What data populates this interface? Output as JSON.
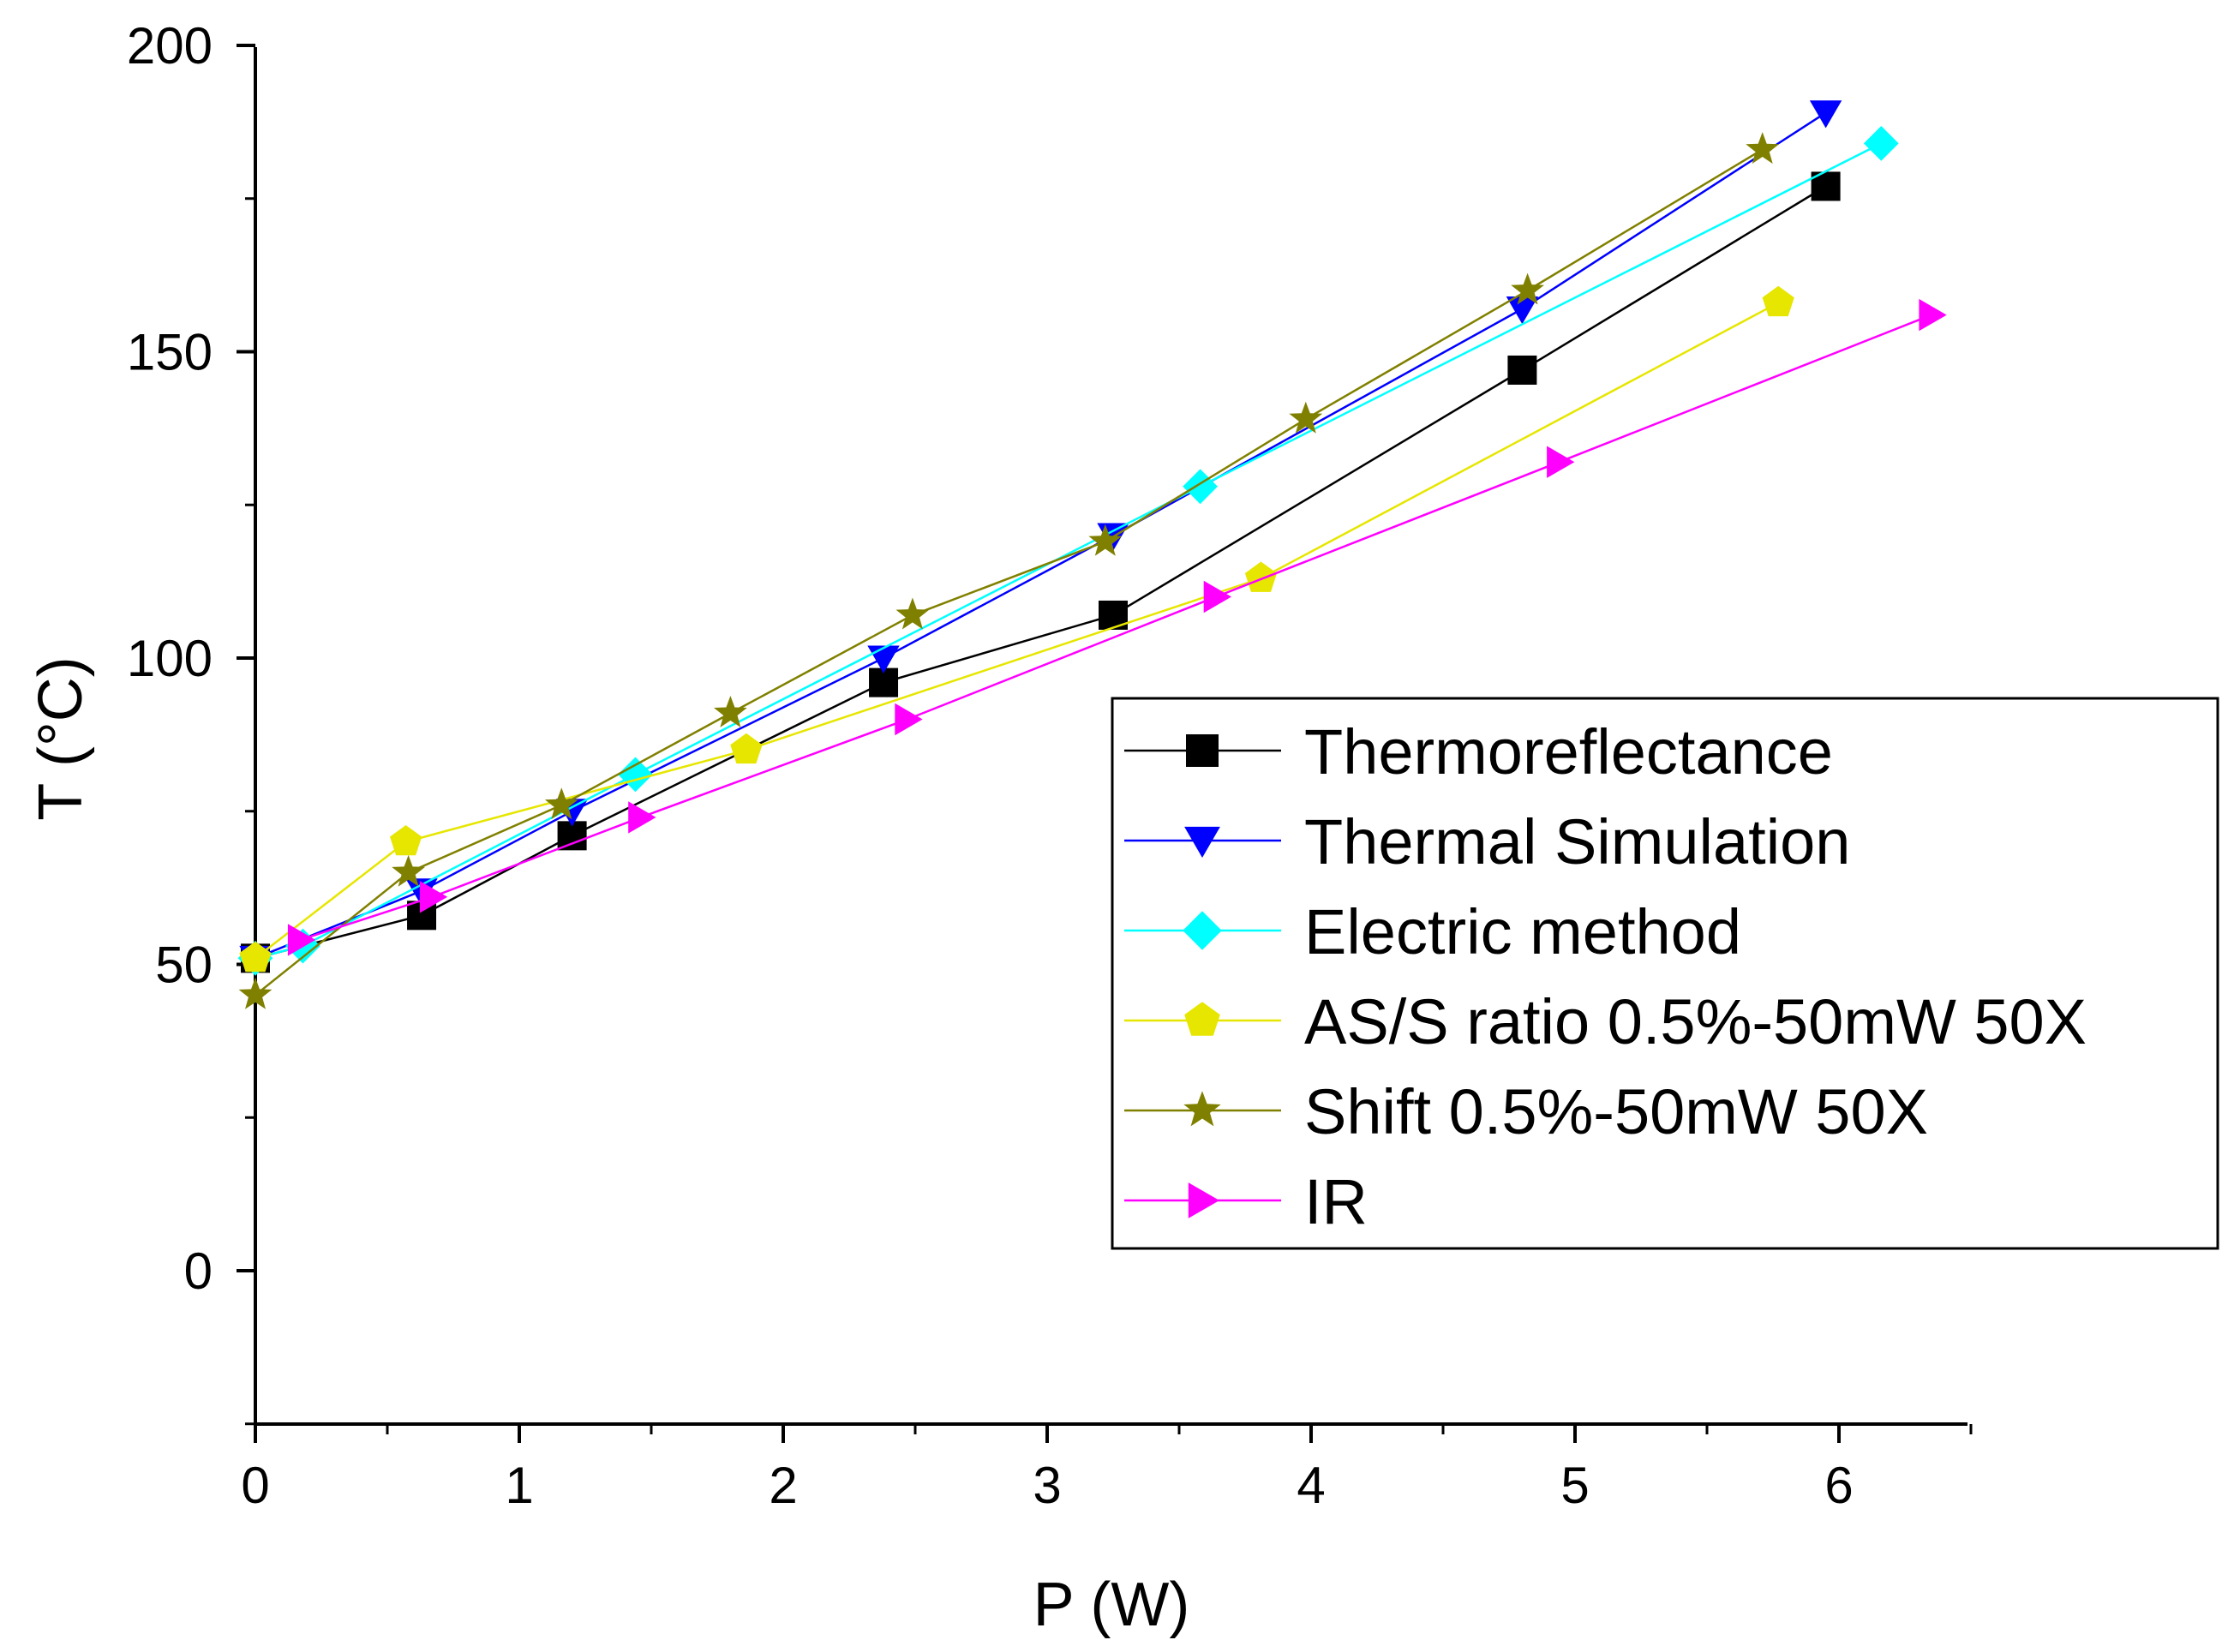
{
  "chart_data": {
    "type": "scatter",
    "title": "",
    "xlabel": "P (W)",
    "ylabel": "T (°C)",
    "xlim": [
      0,
      6.5
    ],
    "ylim": [
      -25,
      200
    ],
    "x_ticks": [
      0,
      1,
      2,
      3,
      4,
      5,
      6
    ],
    "x_tick_labels": [
      "0",
      "1",
      "2",
      "3",
      "4",
      "5",
      "6"
    ],
    "y_ticks": [
      0,
      50,
      100,
      150,
      200
    ],
    "y_tick_labels": [
      "0",
      "50",
      "100",
      "150",
      "200"
    ],
    "grid": false,
    "legend_position": "right",
    "series": [
      {
        "name": "Thermoreflectance",
        "color": "#000000",
        "marker": "square",
        "x": [
          0.0,
          0.63,
          1.2,
          2.38,
          3.25,
          4.8,
          5.95
        ],
        "y": [
          51,
          58,
          71,
          96,
          107,
          147,
          177
        ]
      },
      {
        "name": "Thermal Simulation",
        "color": "#0000ff",
        "marker": "triangle-down",
        "x": [
          0.0,
          0.63,
          1.2,
          2.38,
          3.25,
          4.8,
          5.95
        ],
        "y": [
          51,
          62,
          75,
          100,
          120,
          157,
          189
        ]
      },
      {
        "name": "Electric method",
        "color": "#00ffff",
        "marker": "diamond",
        "x": [
          0.0,
          0.18,
          1.44,
          3.58,
          6.16
        ],
        "y": [
          51,
          53,
          81,
          128,
          184
        ]
      },
      {
        "name": "AS/S ratio 0.5%-50mW 50X",
        "color": "#e6e600",
        "marker": "pentagon",
        "x": [
          0.0,
          0.57,
          1.86,
          3.81,
          5.77
        ],
        "y": [
          51,
          70,
          85,
          113,
          158
        ]
      },
      {
        "name": "Shift 0.5%-50mW 50X",
        "color": "#808000",
        "marker": "star",
        "x": [
          0.0,
          0.58,
          1.16,
          1.8,
          2.49,
          3.22,
          3.98,
          4.82,
          5.71
        ],
        "y": [
          45,
          65,
          76,
          91,
          107,
          119,
          139,
          160,
          183
        ]
      },
      {
        "name": "IR",
        "color": "#ff00ff",
        "marker": "triangle-right",
        "x": [
          0.17,
          0.67,
          1.46,
          2.47,
          3.64,
          4.94,
          6.35
        ],
        "y": [
          54,
          61,
          74,
          90,
          110,
          132,
          156
        ]
      }
    ]
  }
}
